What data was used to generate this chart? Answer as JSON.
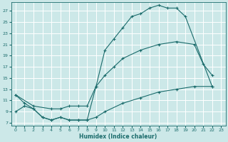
{
  "xlabel": "Humidex (Indice chaleur)",
  "bg_color": "#cce8e8",
  "grid_color": "#ffffff",
  "line_color": "#1a6b6b",
  "xlim": [
    -0.5,
    23.5
  ],
  "ylim": [
    6.5,
    28.5
  ],
  "xticks": [
    0,
    1,
    2,
    3,
    4,
    5,
    6,
    7,
    8,
    9,
    10,
    11,
    12,
    13,
    14,
    15,
    16,
    17,
    18,
    19,
    20,
    21,
    22,
    23
  ],
  "yticks": [
    7,
    9,
    11,
    13,
    15,
    17,
    19,
    21,
    23,
    25,
    27
  ],
  "line_top": {
    "x": [
      0,
      1,
      2,
      3,
      4,
      5,
      6,
      7,
      8,
      9,
      10,
      11,
      12,
      13,
      14,
      15,
      16,
      17,
      18,
      19,
      22
    ],
    "y": [
      12,
      10.5,
      9.5,
      8.0,
      7.5,
      8.0,
      7.5,
      7.5,
      7.5,
      13.5,
      20.0,
      22.0,
      24.0,
      26.0,
      26.5,
      27.5,
      28.0,
      27.5,
      27.5,
      26.0,
      13.5
    ]
  },
  "line_mid": {
    "x": [
      0,
      2,
      4,
      5,
      6,
      7,
      8,
      9,
      10,
      11,
      12,
      14,
      16,
      18,
      20,
      21,
      22
    ],
    "y": [
      12,
      10,
      9.5,
      9.5,
      10,
      10,
      10,
      13.5,
      15.5,
      17.0,
      18.5,
      20.0,
      21.0,
      21.5,
      21.0,
      17.5,
      15.5
    ]
  },
  "line_bot": {
    "x": [
      0,
      1,
      2,
      3,
      4,
      5,
      6,
      7,
      8,
      9,
      10,
      12,
      14,
      16,
      18,
      20,
      22
    ],
    "y": [
      9,
      10,
      9.5,
      8.0,
      7.5,
      8.0,
      7.5,
      7.5,
      7.5,
      8.0,
      9.0,
      10.5,
      11.5,
      12.5,
      13.0,
      13.5,
      13.5
    ]
  }
}
